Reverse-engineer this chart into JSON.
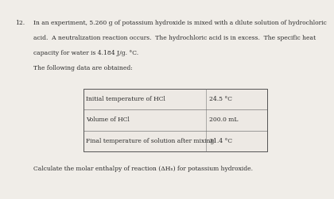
{
  "background_color": "#f0ede8",
  "question_number": "12.",
  "line1": "In an experiment, 5.260 g of potassium hydroxide is mixed with a dilute solution of hydrochloric",
  "line2": "acid.  A neutralization reaction occurs.  The hydrochloric acid is in excess.  The specific heat",
  "line3": "capacity for water is 4.184 J/g. °C.",
  "line4": "The following data are obtained:",
  "table_rows": [
    [
      "Initial temperature of HCl",
      "24.5 °C"
    ],
    [
      "Volume of HCl",
      "200.0 mL"
    ],
    [
      "Final temperature of solution after mixing",
      "31.4 °C"
    ]
  ],
  "calculate_text": "Calculate the molar enthalpy of reaction (ΔHₙ) for potassium hydroxide.",
  "font_size": 5.5,
  "text_color": "#2a2a2a",
  "table_bg": "#ede9e4",
  "table_border": "#777777"
}
